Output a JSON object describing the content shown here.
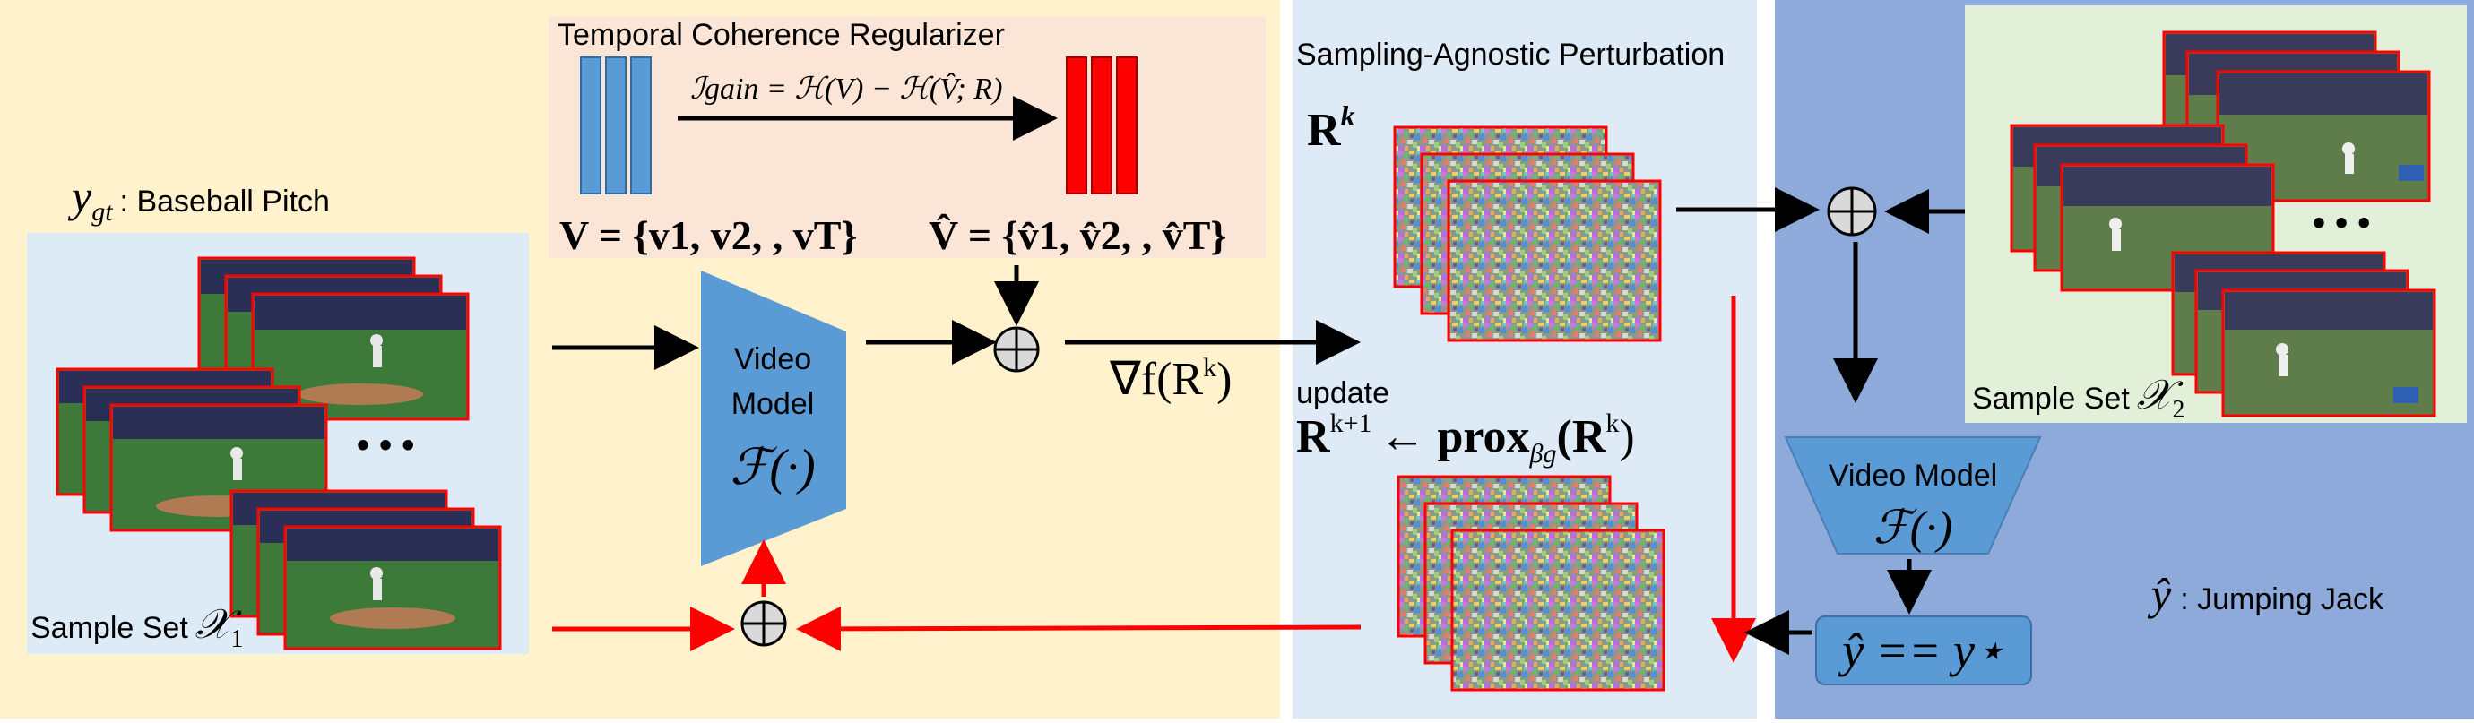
{
  "colors": {
    "panel_left": "#fff2cc",
    "panel_middle": "#deebf7",
    "panel_right": "#8eaadb",
    "regularizer_box": "#fbe5d6",
    "sample_set_1_bg": "#ddebf7",
    "sample_set_2_bg": "#e2f0d9",
    "model_fill": "#5b9bd5",
    "feature_blue": "#5b9bd5",
    "feature_red": "#ff0000",
    "arrow_black": "#000000",
    "arrow_red": "#ff0000",
    "frame_border": "#ff0000"
  },
  "labels": {
    "ground_truth_symbol": "y",
    "ground_truth_subscript": "gt",
    "ground_truth_class": ": Baseball Pitch",
    "sample_set_1": "Sample Set",
    "sample_set_1_symbol": "𝒳",
    "sample_set_1_subscript": "1",
    "ellipsis": "• • •",
    "regularizer_title": "Temporal Coherence Regularizer",
    "info_gain": "ℐgain = ℋ(V) − ℋ(V̂; R)",
    "clean_features": "V = {v1, v2, , vT}",
    "adv_features": "V̂ = {v̂1, v̂2, , v̂T}",
    "model_line1": "Video",
    "model_line2": "Model",
    "model_symbol": "ℱ(·)",
    "perturbation_title": "Sampling-Agnostic Perturbation",
    "perturbation_symbol": "R",
    "perturbation_superscript": "k",
    "gradient": "∇f(R",
    "gradient_superscript": "k",
    "gradient_close": ")",
    "update_word": "update",
    "prox_lhs": "R",
    "prox_lhs_superscript": "k+1",
    "prox_rhs": "← prox",
    "prox_subscript": "βg",
    "prox_arg": "(R",
    "prox_arg_superscript": "k",
    "prox_close": ")",
    "sample_set_2": "Sample Set",
    "sample_set_2_symbol": "𝒳",
    "sample_set_2_subscript": "2",
    "right_model_line1": "Video Model",
    "right_model_symbol": "ℱ(·)",
    "prediction_check": "ŷ == y⋆",
    "predicted_symbol": "ŷ",
    "predicted_class": ": Jumping Jack",
    "oplus": "⊕"
  }
}
